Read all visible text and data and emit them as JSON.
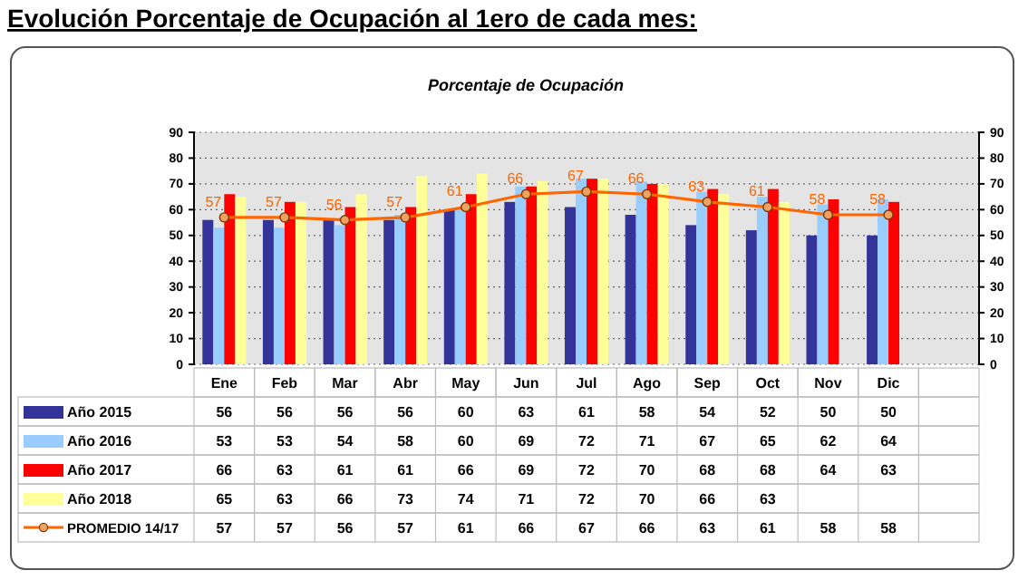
{
  "chart_data": {
    "type": "bar",
    "title": "Porcentaje de Ocupación",
    "subtitle": "Evolución Porcentaje de Ocupación al 1ero de cada mes:",
    "categories": [
      "Ene",
      "Feb",
      "Mar",
      "Abr",
      "May",
      "Jun",
      "Jul",
      "Ago",
      "Sep",
      "Oct",
      "Nov",
      "Dic",
      null
    ],
    "series": [
      {
        "name": "Año 2015",
        "color": "#333399",
        "values": [
          56,
          56,
          56,
          56,
          60,
          63,
          61,
          58,
          54,
          52,
          50,
          50,
          null
        ]
      },
      {
        "name": "Año 2016",
        "color": "#99ccff",
        "values": [
          53,
          53,
          54,
          58,
          60,
          69,
          72,
          71,
          67,
          65,
          62,
          64,
          null
        ]
      },
      {
        "name": "Año 2017",
        "color": "#ff0000",
        "values": [
          66,
          63,
          61,
          61,
          66,
          69,
          72,
          70,
          68,
          68,
          64,
          63,
          null
        ]
      },
      {
        "name": "Año 2018",
        "color": "#ffff99",
        "values": [
          65,
          63,
          66,
          73,
          74,
          71,
          72,
          70,
          66,
          63,
          null,
          null,
          null
        ]
      },
      {
        "name": "PROMEDIO 14/17",
        "type": "line",
        "color": "#ff6600",
        "marker": "circle",
        "values": [
          57,
          57,
          56,
          57,
          61,
          66,
          67,
          66,
          63,
          61,
          58,
          58,
          null
        ]
      }
    ],
    "ylim": [
      0,
      90
    ],
    "yticks": [
      0,
      10,
      20,
      30,
      40,
      50,
      60,
      70,
      80,
      90
    ],
    "y2lim": [
      0,
      90
    ],
    "y2ticks": [
      0,
      10,
      20,
      30,
      40,
      50,
      60,
      70,
      80,
      90
    ],
    "grid": "y",
    "legend": "bottom",
    "data_labels": true,
    "annotations": [
      {
        "text": "57",
        "x": "Ene",
        "y": 57
      },
      {
        "text": "57",
        "x": "Feb",
        "y": 57
      },
      {
        "text": "56",
        "x": "Mar",
        "y": 56
      },
      {
        "text": "57",
        "x": "Abr",
        "y": 57
      },
      {
        "text": "61",
        "x": "May",
        "y": 61
      },
      {
        "text": "66",
        "x": "Jun",
        "y": 66
      },
      {
        "text": "67",
        "x": "Jul",
        "y": 67
      },
      {
        "text": "66",
        "x": "Ago",
        "y": 66
      },
      {
        "text": "63",
        "x": "Sep",
        "y": 63
      },
      {
        "text": "61",
        "x": "Oct",
        "y": 61
      },
      {
        "text": "58",
        "x": "Nov",
        "y": 58
      },
      {
        "text": "58",
        "x": "Dic",
        "y": 58
      }
    ]
  }
}
